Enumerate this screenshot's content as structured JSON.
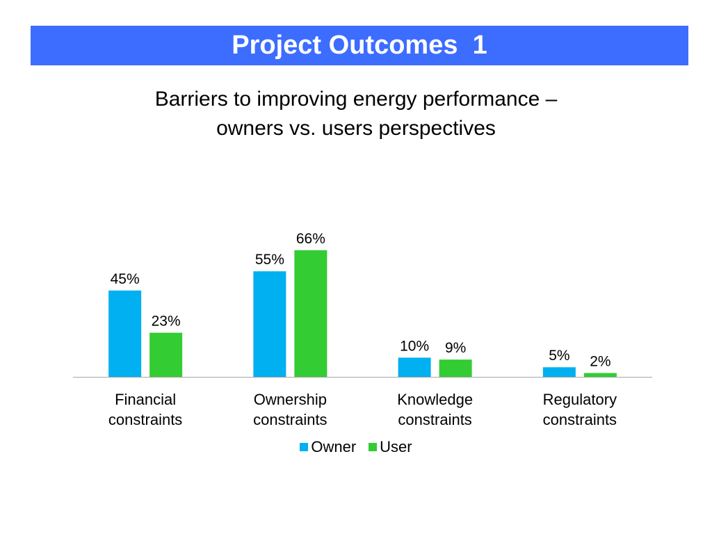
{
  "header": {
    "title": "Project Outcomes  1",
    "bar_color": "#3D6DFF"
  },
  "chart_data": {
    "type": "bar",
    "title_lines": [
      "Barriers to improving energy performance –",
      "owners vs. users perspectives"
    ],
    "categories": [
      [
        "Financial",
        "constraints"
      ],
      [
        "Ownership",
        "constraints"
      ],
      [
        "Knowledge",
        "constraints"
      ],
      [
        "Regulatory",
        "constraints"
      ]
    ],
    "series": [
      {
        "name": "Owner",
        "color": "#00B0F0",
        "values": [
          45,
          55,
          10,
          5
        ],
        "labels": [
          "45%",
          "55%",
          "10%",
          "5%"
        ]
      },
      {
        "name": "User",
        "color": "#33CC33",
        "values": [
          23,
          66,
          9,
          2
        ],
        "labels": [
          "23%",
          "66%",
          "9%",
          "2%"
        ]
      }
    ],
    "ylim": [
      0,
      100
    ],
    "grid": false,
    "legend": "bottom-center"
  }
}
